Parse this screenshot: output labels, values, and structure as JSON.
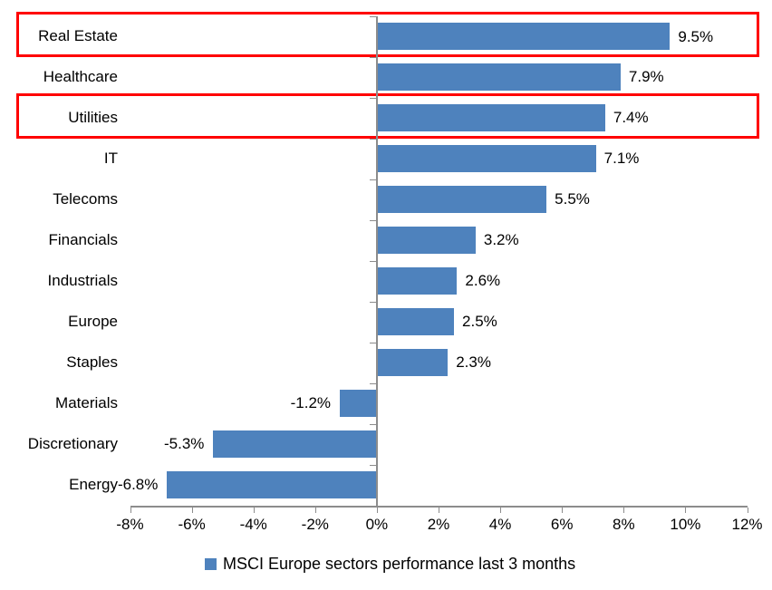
{
  "chart_data": {
    "type": "bar",
    "orientation": "horizontal",
    "title": "",
    "categories": [
      "Real Estate",
      "Healthcare",
      "Utilities",
      "IT",
      "Telecoms",
      "Financials",
      "Industrials",
      "Europe",
      "Staples",
      "Materials",
      "Discretionary",
      "Energy"
    ],
    "values": [
      9.5,
      7.9,
      7.4,
      7.1,
      5.5,
      3.2,
      2.6,
      2.5,
      2.3,
      -1.2,
      -5.3,
      -6.8
    ],
    "value_labels": [
      "9.5%",
      "7.9%",
      "7.4%",
      "7.1%",
      "5.5%",
      "3.2%",
      "2.6%",
      "2.5%",
      "2.3%",
      "-1.2%",
      "-5.3%",
      "-6.8%"
    ],
    "highlighted_categories": [
      "Real Estate",
      "Utilities"
    ],
    "highlight_indices": [
      0,
      2
    ],
    "x_axis": {
      "min": -8,
      "max": 12,
      "tick_step": 2,
      "tick_labels": [
        "-8%",
        "-6%",
        "-4%",
        "-2%",
        "0%",
        "2%",
        "4%",
        "6%",
        "8%",
        "10%",
        "12%"
      ]
    },
    "legend": {
      "label": "MSCI Europe sectors performance last 3 months",
      "position": "bottom"
    },
    "colors": {
      "bar": "#4E82BD",
      "highlight_border": "#FF0000",
      "axis": "#8C8C8C",
      "text": "#000000",
      "background": "#FFFFFF"
    },
    "grid": false
  }
}
